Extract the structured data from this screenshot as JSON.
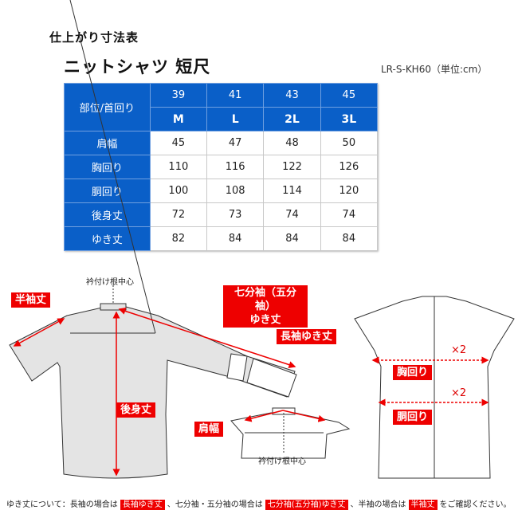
{
  "title": "仕上がり寸法表",
  "subtitle": "ニットシャツ 短尺",
  "code": "LR-S-KH60（単位:cm）",
  "table": {
    "corner": "部位/首回り",
    "neck": [
      "39",
      "41",
      "43",
      "45"
    ],
    "sizes": [
      "M",
      "L",
      "2L",
      "3L"
    ],
    "rows": [
      {
        "label": "肩幅",
        "values": [
          "45",
          "47",
          "48",
          "50"
        ]
      },
      {
        "label": "胸回り",
        "values": [
          "110",
          "116",
          "122",
          "126"
        ]
      },
      {
        "label": "胴回り",
        "values": [
          "100",
          "108",
          "114",
          "120"
        ]
      },
      {
        "label": "後身丈",
        "values": [
          "72",
          "73",
          "74",
          "74"
        ]
      },
      {
        "label": "ゆき丈",
        "values": [
          "82",
          "84",
          "84",
          "84"
        ]
      }
    ]
  },
  "diagram": {
    "collar_center": "衿付け根中心",
    "half_sleeve": "半袖丈",
    "three_quarter_1": "七分袖（五分袖）",
    "three_quarter_2": "ゆき丈",
    "long_sleeve": "長袖ゆき丈",
    "back_length": "後身丈",
    "shoulder": "肩幅",
    "chest": "胸回り",
    "waist": "胴回り",
    "times2": "×2"
  },
  "note": {
    "p1": "ゆき丈について：長袖の場合は",
    "t1": "長袖ゆき丈",
    "p2": "、七分袖・五分袖の場合は",
    "t2": "七分袖(五分袖)ゆき丈",
    "p3": "、半袖の場合は",
    "t3": "半袖丈",
    "p4": "をご確認ください。"
  },
  "colors": {
    "header": "#0a5fc8",
    "accent": "#e00000"
  }
}
